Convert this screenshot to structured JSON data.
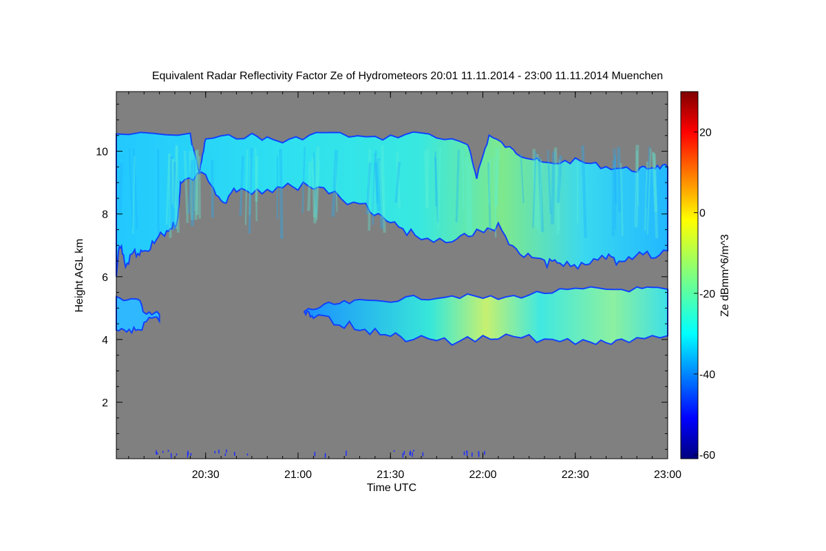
{
  "chart_data": {
    "type": "heatmap",
    "title": "Equivalent Radar Reflectivity Factor Ze of Hydrometeors   20:01 11.11.2014 - 23:00 11.11.2014 Muenchen",
    "xlabel": "Time UTC",
    "ylabel": "Height AGL km",
    "colorbar_label": "Ze dBmm^6/m^3",
    "x_ticks": [
      "20:30",
      "21:00",
      "21:30",
      "22:00",
      "22:30",
      "23:00"
    ],
    "x_tick_minutes": [
      30,
      60,
      90,
      120,
      150,
      180
    ],
    "xlim_minutes": [
      1,
      180
    ],
    "y_ticks": [
      2,
      4,
      6,
      8,
      10
    ],
    "ylim": [
      0.2,
      11.9
    ],
    "colorbar_ticks": [
      -60,
      -40,
      -20,
      0,
      20
    ],
    "colorbar_range": [
      -61,
      30
    ],
    "background_color": "#808080",
    "colormap": "jet",
    "cloud_layers": [
      {
        "name": "upper",
        "time_range_minutes": [
          1,
          180
        ],
        "height_top_km": [
          10.5,
          9.4
        ],
        "height_base_km": [
          6.1,
          6.7
        ],
        "ze_peak_dbz": -4
      },
      {
        "name": "lower",
        "time_range_minutes": [
          1,
          180
        ],
        "height_top_km": [
          5.3,
          5.6
        ],
        "height_base_km": [
          4.2,
          4.0
        ],
        "ze_peak_dbz": -10
      }
    ]
  }
}
